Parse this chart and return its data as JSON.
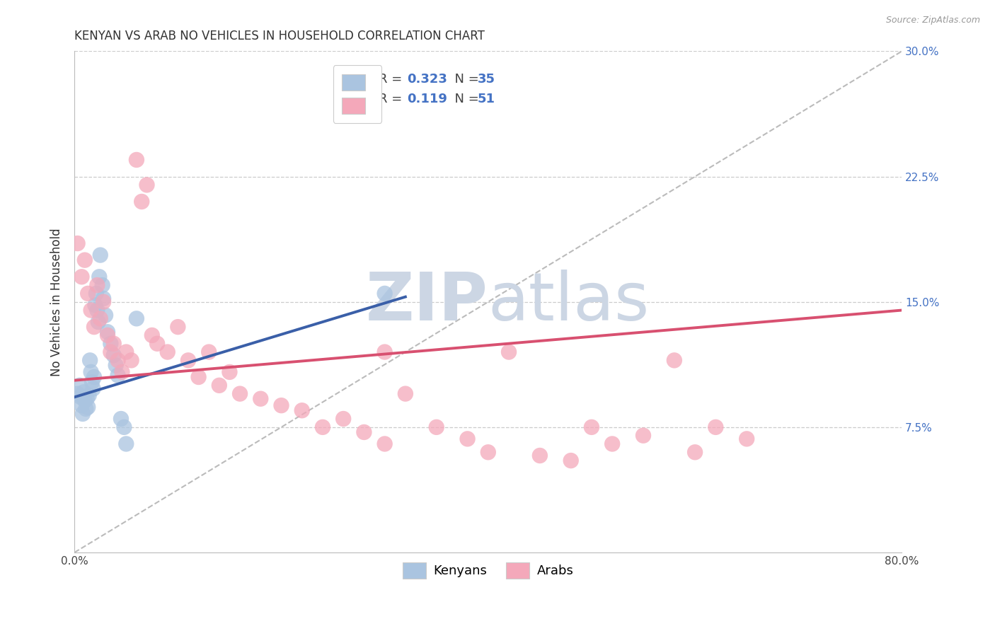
{
  "title": "KENYAN VS ARAB NO VEHICLES IN HOUSEHOLD CORRELATION CHART",
  "source": "Source: ZipAtlas.com",
  "ylabel": "No Vehicles in Household",
  "xlim": [
    0.0,
    0.8
  ],
  "ylim": [
    0.0,
    0.32
  ],
  "plot_ylim": [
    0.0,
    0.3
  ],
  "ytick_positions": [
    0.075,
    0.15,
    0.225,
    0.3
  ],
  "ytick_labels": [
    "7.5%",
    "15.0%",
    "22.5%",
    "30.0%"
  ],
  "background_color": "#ffffff",
  "watermark_text": "ZIPatlas",
  "watermark_color": "#ccd8e8",
  "kenyan_color": "#aac4e0",
  "arab_color": "#f4a8ba",
  "kenyan_line_color": "#3a5fa8",
  "arab_line_color": "#d85070",
  "right_tick_color": "#4472c4",
  "kenyan_scatter_x": [
    0.003,
    0.005,
    0.006,
    0.007,
    0.008,
    0.009,
    0.01,
    0.011,
    0.012,
    0.013,
    0.014,
    0.015,
    0.016,
    0.017,
    0.018,
    0.019,
    0.02,
    0.021,
    0.022,
    0.023,
    0.024,
    0.025,
    0.027,
    0.028,
    0.03,
    0.032,
    0.035,
    0.038,
    0.04,
    0.042,
    0.045,
    0.048,
    0.05,
    0.06,
    0.3
  ],
  "kenyan_scatter_y": [
    0.095,
    0.1,
    0.093,
    0.088,
    0.083,
    0.096,
    0.091,
    0.086,
    0.092,
    0.087,
    0.094,
    0.115,
    0.108,
    0.102,
    0.098,
    0.105,
    0.148,
    0.155,
    0.145,
    0.138,
    0.165,
    0.178,
    0.16,
    0.152,
    0.142,
    0.132,
    0.125,
    0.118,
    0.112,
    0.106,
    0.08,
    0.075,
    0.065,
    0.14,
    0.155
  ],
  "arab_scatter_x": [
    0.003,
    0.007,
    0.01,
    0.013,
    0.016,
    0.019,
    0.022,
    0.025,
    0.028,
    0.032,
    0.035,
    0.038,
    0.042,
    0.046,
    0.05,
    0.055,
    0.06,
    0.065,
    0.07,
    0.075,
    0.08,
    0.09,
    0.1,
    0.11,
    0.12,
    0.13,
    0.14,
    0.15,
    0.16,
    0.18,
    0.2,
    0.22,
    0.24,
    0.26,
    0.28,
    0.3,
    0.32,
    0.35,
    0.38,
    0.4,
    0.42,
    0.45,
    0.48,
    0.5,
    0.52,
    0.55,
    0.58,
    0.6,
    0.62,
    0.65,
    0.3
  ],
  "arab_scatter_y": [
    0.185,
    0.165,
    0.175,
    0.155,
    0.145,
    0.135,
    0.16,
    0.14,
    0.15,
    0.13,
    0.12,
    0.125,
    0.115,
    0.108,
    0.12,
    0.115,
    0.235,
    0.21,
    0.22,
    0.13,
    0.125,
    0.12,
    0.135,
    0.115,
    0.105,
    0.12,
    0.1,
    0.108,
    0.095,
    0.092,
    0.088,
    0.085,
    0.075,
    0.08,
    0.072,
    0.065,
    0.095,
    0.075,
    0.068,
    0.06,
    0.12,
    0.058,
    0.055,
    0.075,
    0.065,
    0.07,
    0.115,
    0.06,
    0.075,
    0.068,
    0.12
  ],
  "kenyan_trend_x": [
    0.0,
    0.32
  ],
  "kenyan_trend_y": [
    0.093,
    0.153
  ],
  "arab_trend_x": [
    0.0,
    0.8
  ],
  "arab_trend_y": [
    0.103,
    0.145
  ],
  "dashed_trend_x": [
    0.0,
    0.8
  ],
  "dashed_trend_y": [
    0.0,
    0.3
  ],
  "title_fontsize": 12,
  "tick_fontsize": 11,
  "legend_fontsize": 13
}
